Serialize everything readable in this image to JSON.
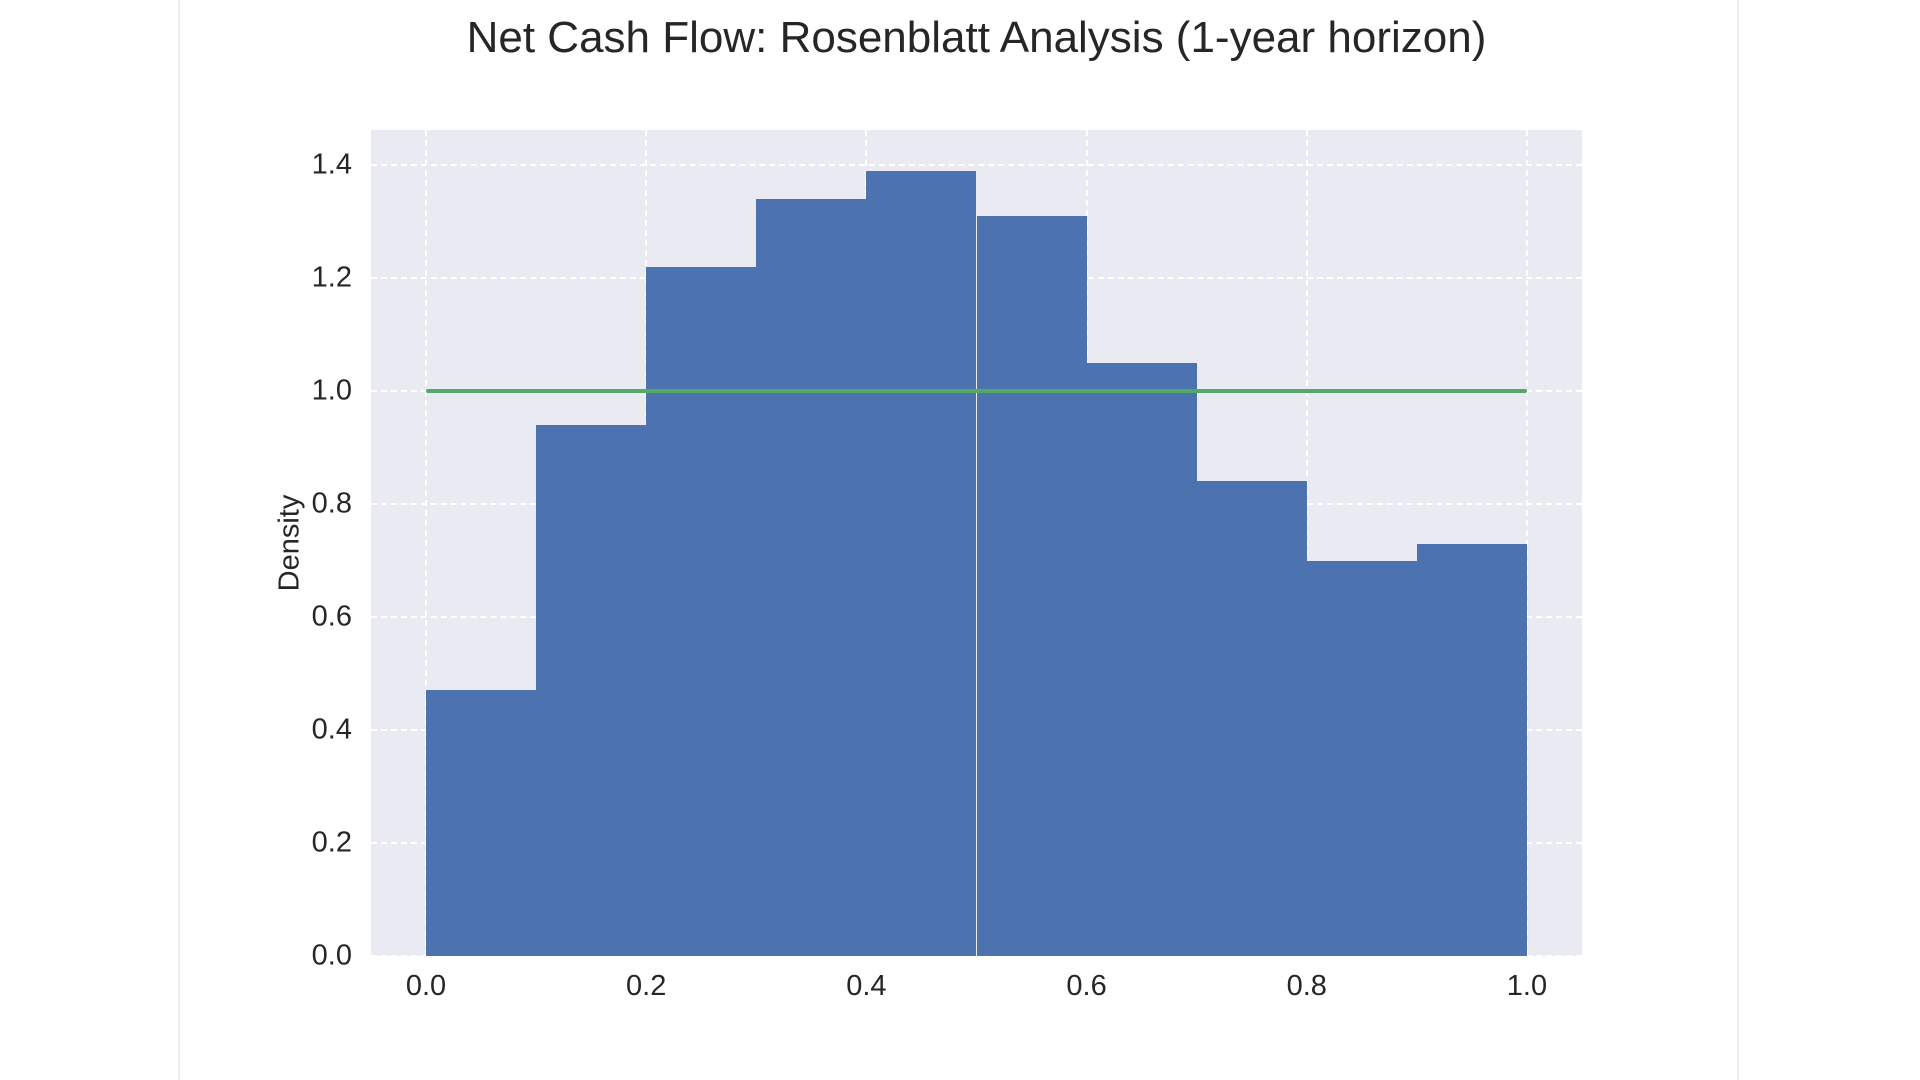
{
  "chart_data": {
    "type": "histogram",
    "title": "Net Cash Flow: Rosenblatt Analysis (1-year horizon)",
    "xlabel": "",
    "ylabel": "Density",
    "bin_edges": [
      0.0,
      0.1,
      0.2,
      0.3,
      0.4,
      0.5,
      0.6,
      0.7,
      0.8,
      0.9,
      1.0
    ],
    "densities": [
      0.47,
      0.94,
      1.22,
      1.34,
      1.39,
      1.31,
      1.05,
      0.84,
      0.7,
      0.73
    ],
    "reference_line": {
      "y": 1.0,
      "x_start": 0.0,
      "x_end": 1.0
    },
    "x_tick_labels": [
      "0.0",
      "0.2",
      "0.4",
      "0.6",
      "0.8",
      "1.0"
    ],
    "x_tick_values": [
      0.0,
      0.2,
      0.4,
      0.6,
      0.8,
      1.0
    ],
    "y_tick_labels": [
      "0.0",
      "0.2",
      "0.4",
      "0.6",
      "0.8",
      "1.0",
      "1.2",
      "1.4"
    ],
    "y_tick_values": [
      0.0,
      0.2,
      0.4,
      0.6,
      0.8,
      1.0,
      1.2,
      1.4
    ],
    "xlim": [
      -0.05,
      1.05
    ],
    "ylim": [
      0,
      1.462
    ],
    "grid": "white dashed, both axes",
    "legend": "none",
    "colors": {
      "bar": "#4c72b0",
      "reference_line": "#55a868",
      "plot_background": "#eaeaf2",
      "grid_line": "#ffffff",
      "text": "#262626",
      "page_background": "#ffffff"
    }
  }
}
